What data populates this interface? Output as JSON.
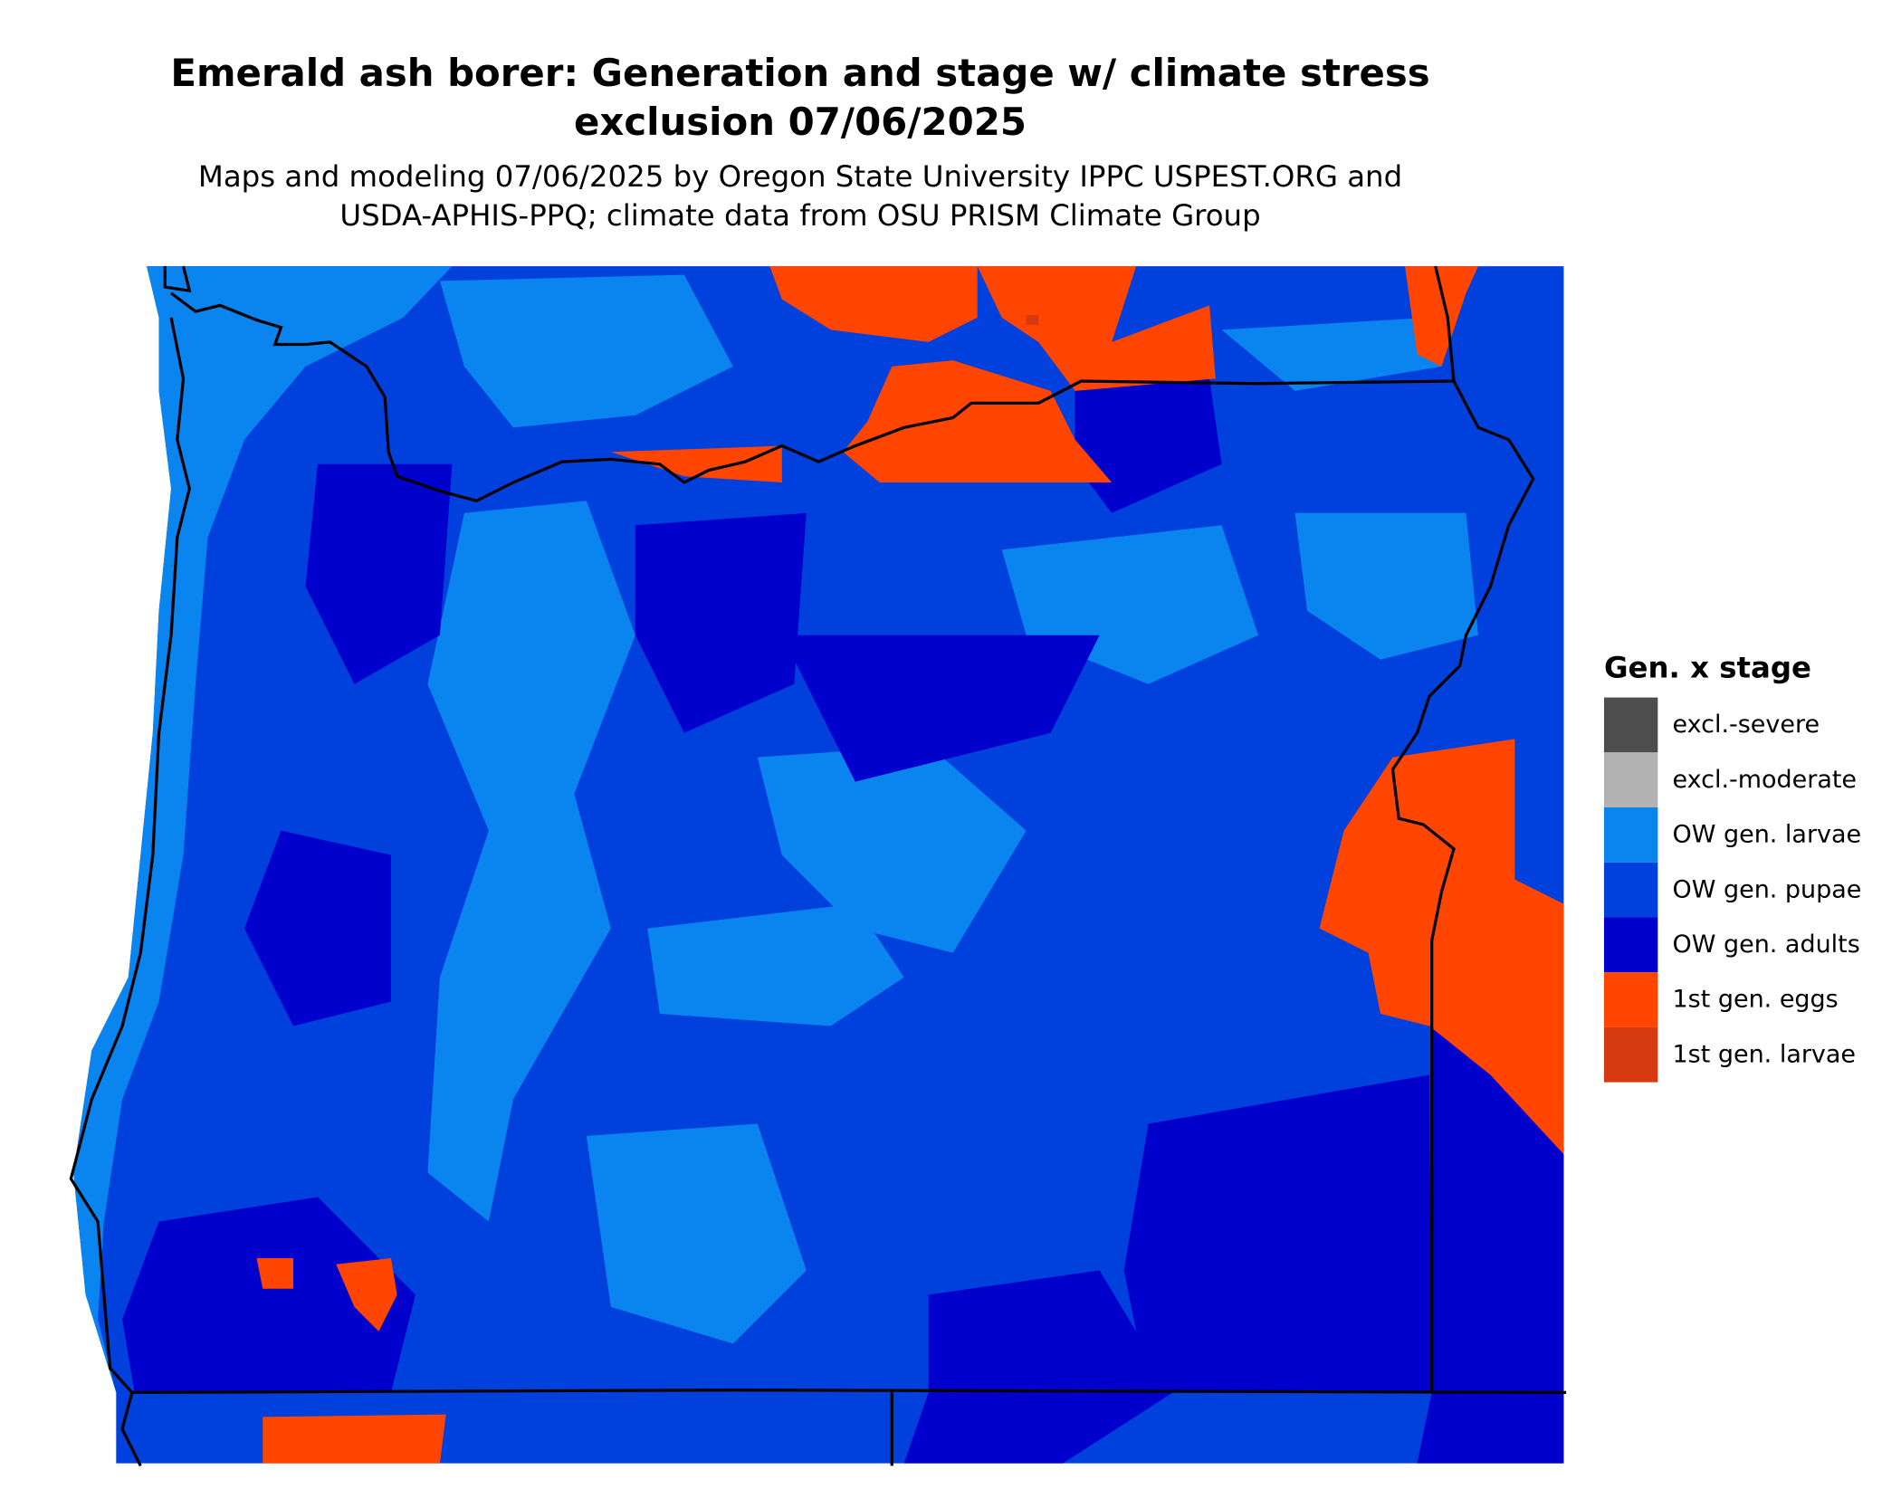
{
  "title": [
    "Emerald ash borer: Generation and stage w/ climate stress",
    "exclusion 07/06/2025"
  ],
  "subtitle": [
    "Maps and modeling 07/06/2025 by Oregon State University IPPC USPEST.ORG and",
    "USDA-APHIS-PPQ; climate data from OSU PRISM Climate Group"
  ],
  "legend": {
    "title": "Gen. x stage",
    "items": [
      {
        "label": "excl.-severe",
        "color": "#4d4d4d"
      },
      {
        "label": "excl.-moderate",
        "color": "#b3b3b3"
      },
      {
        "label": "OW gen. larvae",
        "color": "#0a84ee"
      },
      {
        "label": "OW gen. pupae",
        "color": "#0040dd"
      },
      {
        "label": "OW gen. adults",
        "color": "#0000cc"
      },
      {
        "label": "1st gen. eggs",
        "color": "#ff4500"
      },
      {
        "label": "1st gen. larvae",
        "color": "#d63a10"
      }
    ]
  }
}
